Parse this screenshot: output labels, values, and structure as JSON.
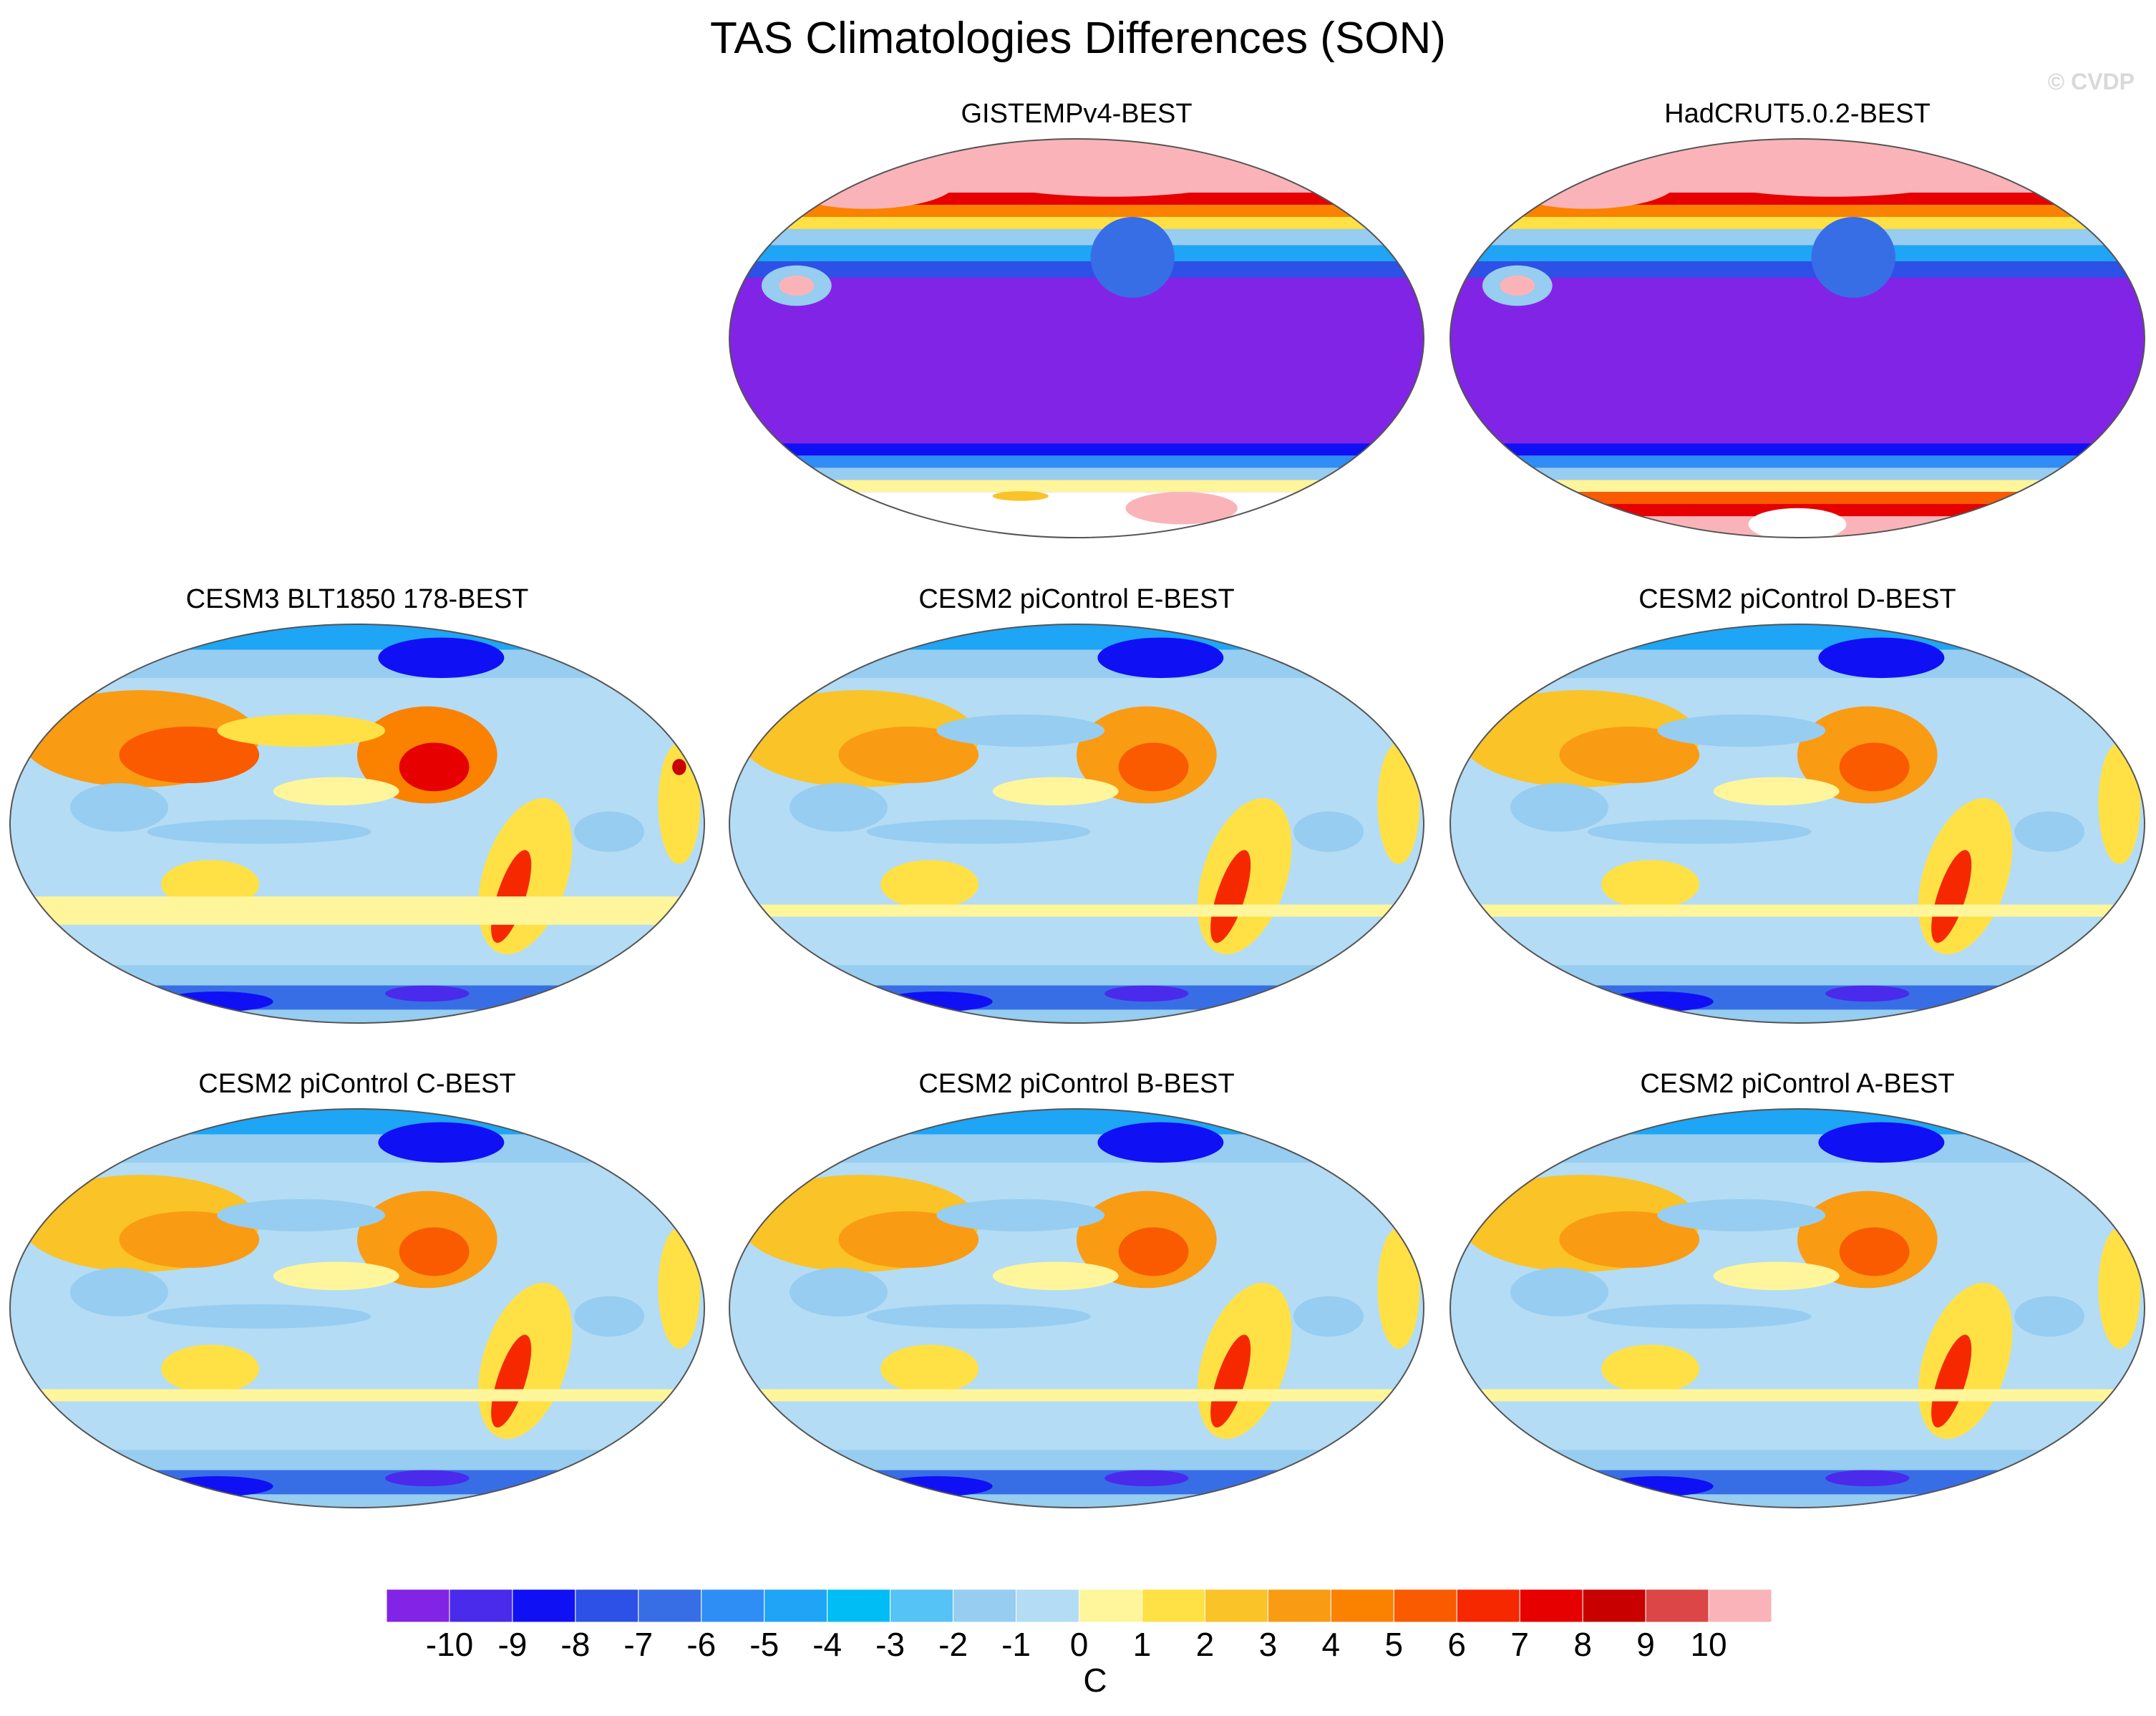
{
  "title": "TAS Climatologies Differences (SON)",
  "credit": "© CVDP",
  "chart_data": {
    "type": "heatmap",
    "projection": "Robinson (global, Pacific-centered)",
    "variable": "TAS",
    "season": "SON",
    "units": "C",
    "contour_levels": [
      -10,
      -9,
      -8,
      -7,
      -6,
      -5,
      -4,
      -3,
      -2,
      -1,
      0,
      1,
      2,
      3,
      4,
      5,
      6,
      7,
      8,
      9,
      10
    ],
    "colors": [
      "#8224e6",
      "#4a2aeb",
      "#1010f5",
      "#2d50e6",
      "#376ee6",
      "#2e8ef5",
      "#1ea5f5",
      "#00bef5",
      "#55c3f5",
      "#96cdf0",
      "#b4dcf5",
      "#fff59b",
      "#ffe145",
      "#fac328",
      "#fa9b14",
      "#fa8200",
      "#fa5a00",
      "#f52800",
      "#e60000",
      "#c80000",
      "#dc4646",
      "#fab4b9"
    ],
    "panels": [
      {
        "id": "gistemp",
        "title": "GISTEMPv4-BEST",
        "pattern": "obs",
        "missing_antarctica": true
      },
      {
        "id": "hadcrut",
        "title": "HadCRUT5.0.2-BEST",
        "pattern": "obs",
        "missing_antarctica": false
      },
      {
        "id": "cesm3",
        "title": "CESM3 BLT1850 178-BEST",
        "pattern": "model_warm"
      },
      {
        "id": "pi-e",
        "title": "CESM2 piControl E-BEST",
        "pattern": "model"
      },
      {
        "id": "pi-d",
        "title": "CESM2 piControl D-BEST",
        "pattern": "model"
      },
      {
        "id": "pi-c",
        "title": "CESM2 piControl C-BEST",
        "pattern": "model"
      },
      {
        "id": "pi-b",
        "title": "CESM2 piControl B-BEST",
        "pattern": "model"
      },
      {
        "id": "pi-a",
        "title": "CESM2 piControl A-BEST",
        "pattern": "model"
      }
    ],
    "colorbar_labels": [
      "-10",
      "-9",
      "-8",
      "-7",
      "-6",
      "-5",
      "-4",
      "-3",
      "-2",
      "-1",
      "0",
      "1",
      "2",
      "3",
      "4",
      "5",
      "6",
      "7",
      "8",
      "9",
      "10"
    ]
  }
}
